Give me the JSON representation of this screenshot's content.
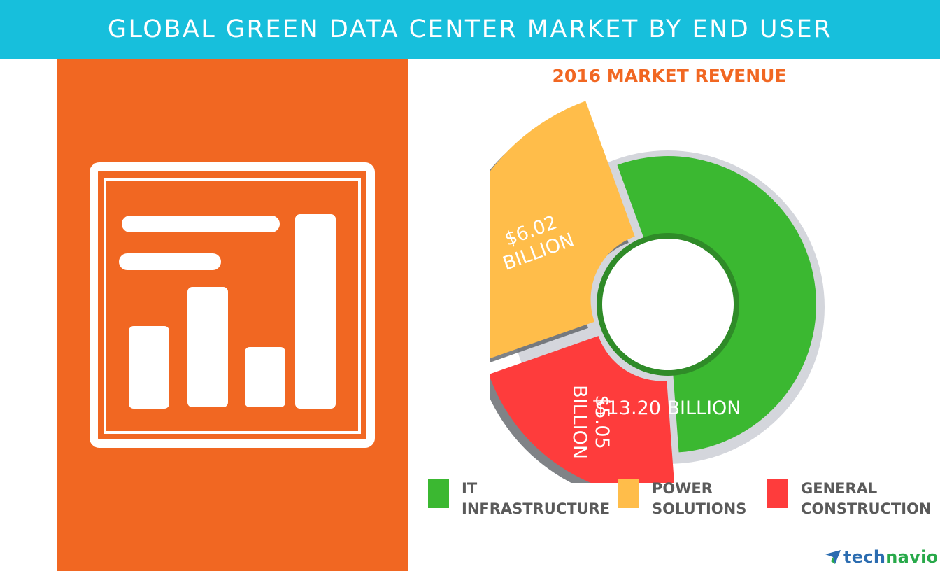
{
  "header": {
    "title": "GLOBAL GREEN DATA CENTER MARKET BY END USER"
  },
  "chart_data": {
    "type": "pie",
    "title": "2016 MARKET REVENUE",
    "unit": "USD billion",
    "categories": [
      "IT INFRASTRUCTURE",
      "GENERAL CONSTRUCTION",
      "POWER SOLUTIONS"
    ],
    "values": [
      13.2,
      5.05,
      6.02
    ],
    "data_labels": [
      "$13.20 BILLION",
      "$5.05 BILLION",
      "$6.02 BILLION"
    ],
    "colors": [
      "#3bb831",
      "#fe3c3c",
      "#ffbd4a"
    ],
    "legend": [
      {
        "line1": "IT",
        "line2": "INFRASTRUCTURE",
        "color": "#3bb831"
      },
      {
        "line1": "POWER",
        "line2": "SOLUTIONS",
        "color": "#ffbd4a"
      },
      {
        "line1": "GENERAL",
        "line2": "CONSTRUCTION",
        "color": "#fe3c3c"
      }
    ],
    "legend_position": "bottom"
  },
  "left_panel": {
    "icon": "presentation-board-bar-chart-icon",
    "color": "#f16722"
  },
  "logo": {
    "text_part1": "tech",
    "text_part2": "navio",
    "icon": "technavio-logo-icon"
  }
}
